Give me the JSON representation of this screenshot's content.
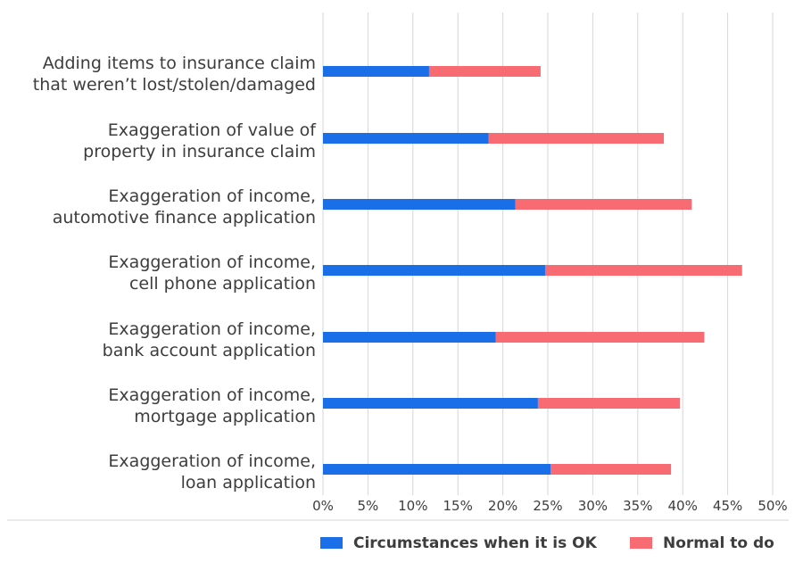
{
  "chart_data": {
    "type": "bar",
    "orientation": "horizontal",
    "stacked": true,
    "categories": [
      [
        "Adding items to insurance claim",
        "that weren’t lost/stolen/damaged"
      ],
      [
        "Exaggeration of value of",
        "property in insurance claim"
      ],
      [
        "Exaggeration of income,",
        "automotive finance application"
      ],
      [
        "Exaggeration of income,",
        "cell phone application"
      ],
      [
        "Exaggeration of income,",
        "bank account application"
      ],
      [
        "Exaggeration of income,",
        "mortgage application"
      ],
      [
        "Exaggeration of income,",
        "loan application"
      ]
    ],
    "series": [
      {
        "name": "Circumstances when it is OK",
        "color": "#1a6ee8",
        "values": [
          11.8,
          18.4,
          21.4,
          24.7,
          19.2,
          23.9,
          25.3
        ]
      },
      {
        "name": "Normal to do",
        "color": "#f96b73",
        "values": [
          12.4,
          19.5,
          19.6,
          21.9,
          23.2,
          15.8,
          13.4
        ]
      }
    ],
    "xticks": [
      "0%",
      "5%",
      "10%",
      "15%",
      "20%",
      "25%",
      "30%",
      "35%",
      "40%",
      "45%",
      "50%"
    ],
    "xlim": [
      0,
      50
    ],
    "grid": true,
    "legend": "bottom"
  }
}
